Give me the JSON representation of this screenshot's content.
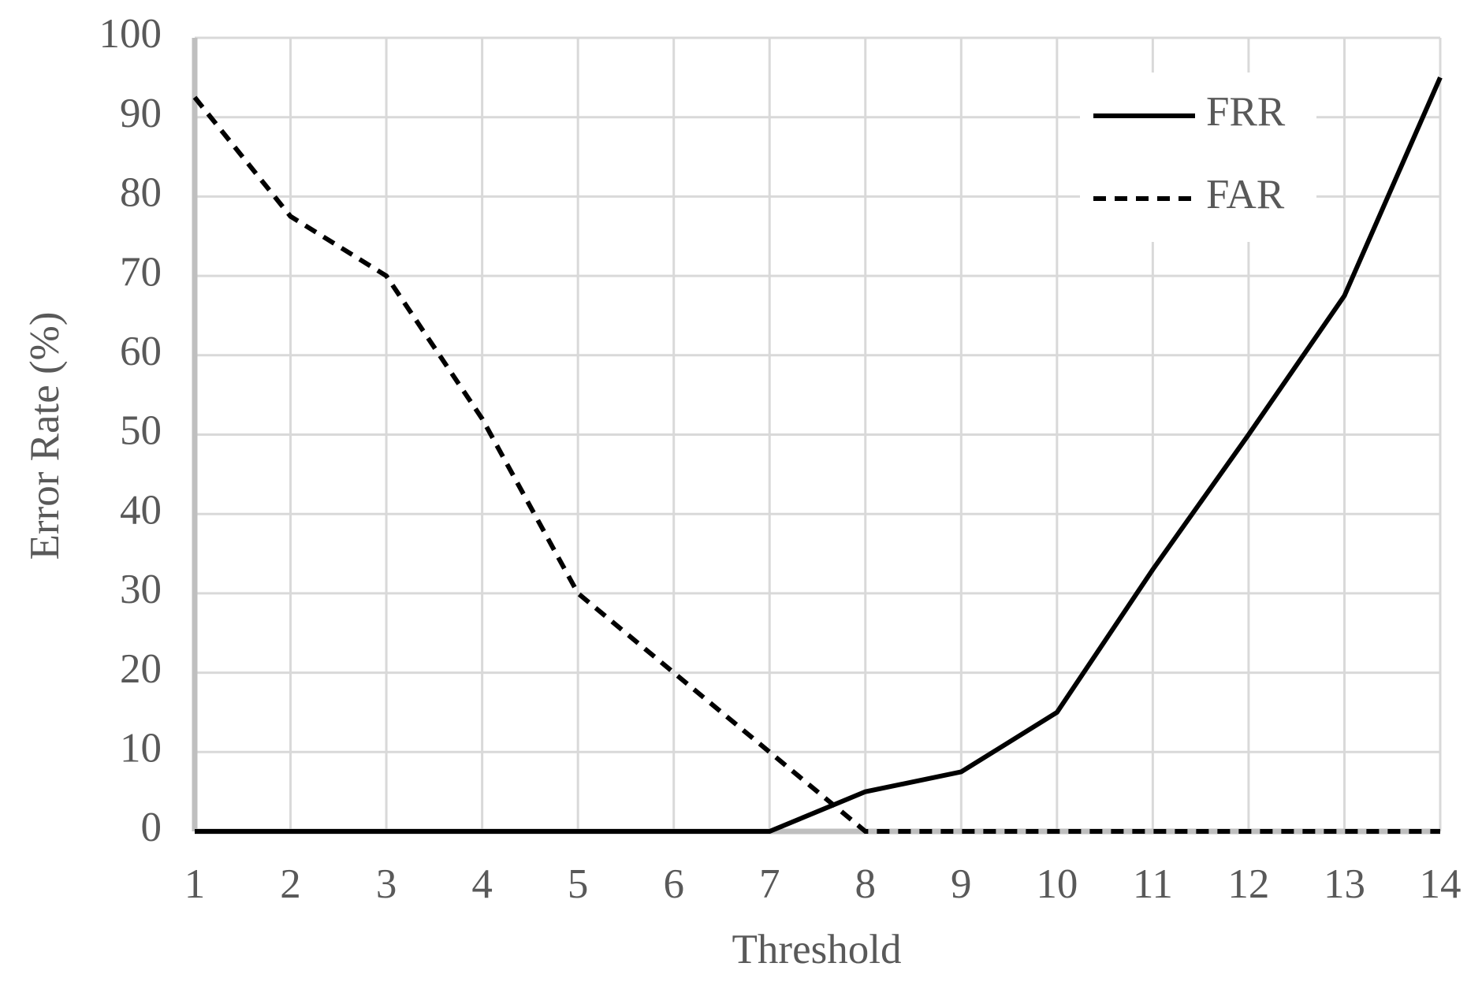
{
  "chart_data": {
    "type": "line",
    "x_label": "Threshold",
    "y_label": "Error Rate (%)",
    "x": [
      1,
      2,
      3,
      4,
      5,
      6,
      7,
      8,
      9,
      10,
      11,
      12,
      13,
      14
    ],
    "series": [
      {
        "name": "FRR",
        "color": "#000000",
        "linestyle": "solid",
        "values": [
          0,
          0,
          0,
          0,
          0,
          0,
          0,
          5,
          7.5,
          15,
          33,
          50,
          67.5,
          95
        ]
      },
      {
        "name": "FAR",
        "color": "#000000",
        "linestyle": "dashed",
        "values": [
          92.5,
          77.5,
          70,
          52,
          30,
          20,
          10,
          0,
          0,
          0,
          0,
          0,
          0,
          0
        ]
      }
    ],
    "xlim": [
      1,
      14
    ],
    "xticks": [
      1,
      2,
      3,
      4,
      5,
      6,
      7,
      8,
      9,
      10,
      11,
      12,
      13,
      14
    ],
    "ylim": [
      0,
      100
    ],
    "yticks": [
      0,
      10,
      20,
      30,
      40,
      50,
      60,
      70,
      80,
      90,
      100
    ],
    "grid": true,
    "legend": "upper right"
  }
}
